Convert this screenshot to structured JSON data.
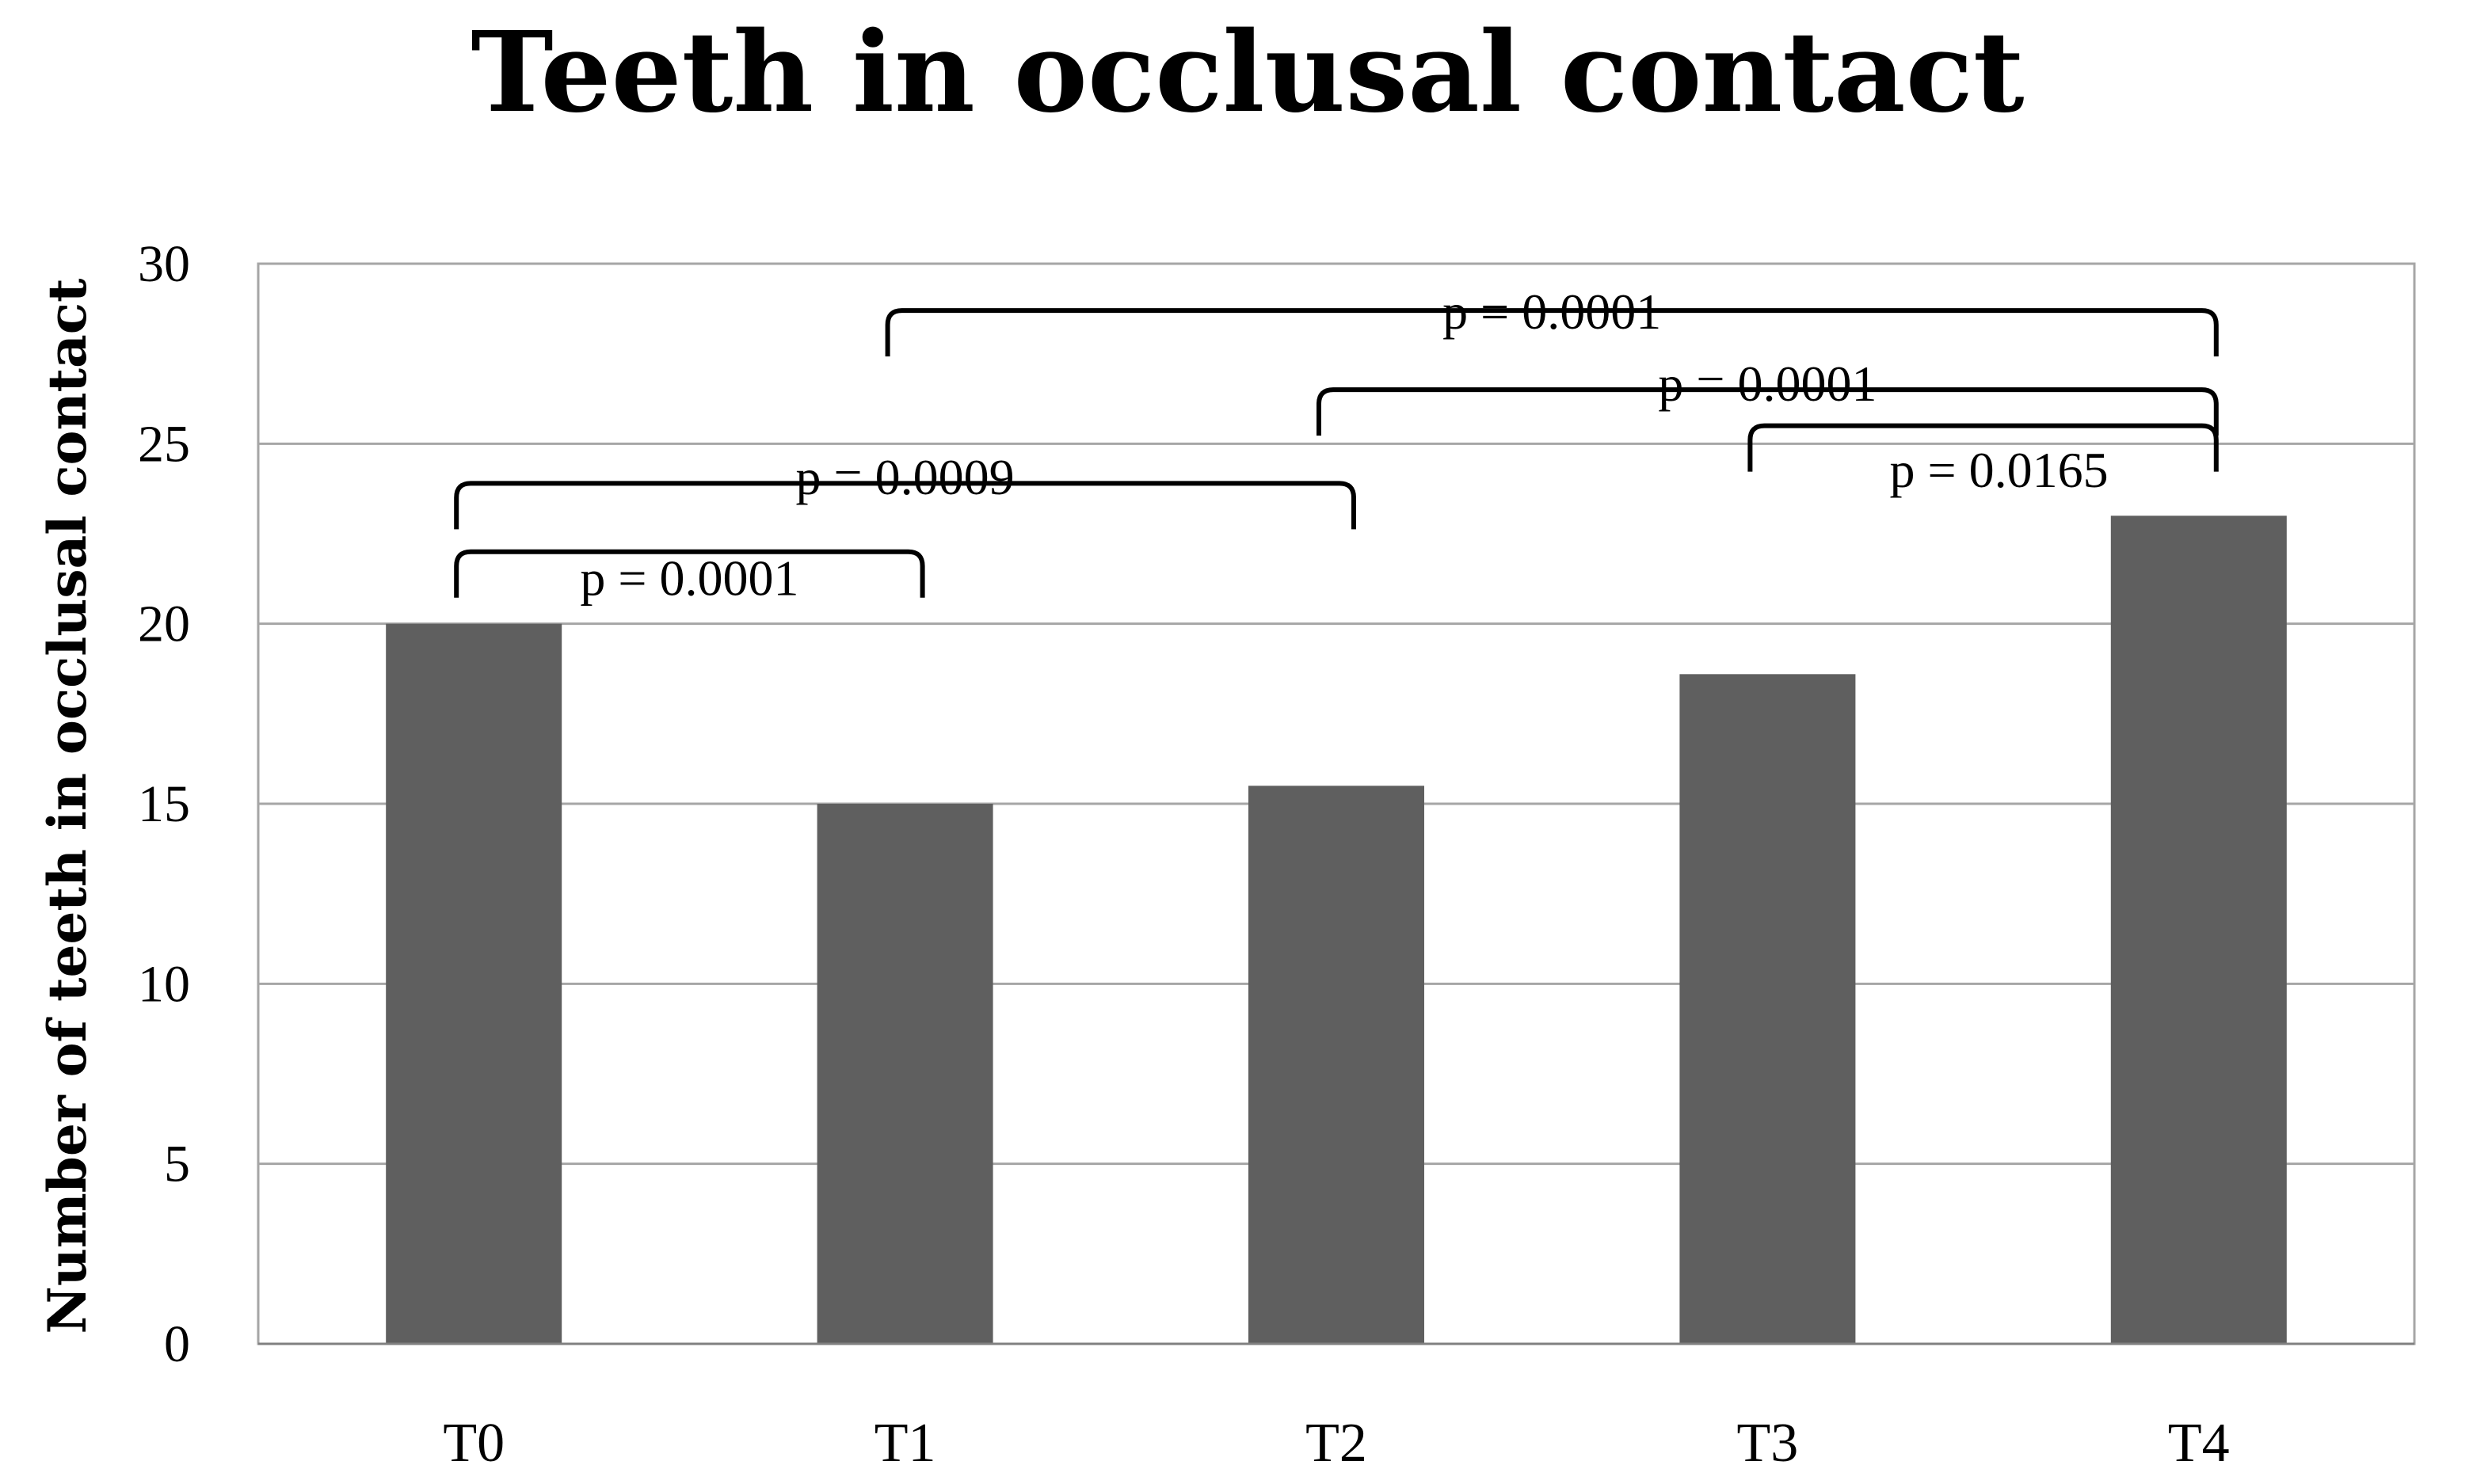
{
  "chart_data": {
    "type": "bar",
    "title": "Teeth in occlusal contact",
    "xlabel": "",
    "ylabel": "Number of teeth in occlusal contact",
    "categories": [
      "T0",
      "T1",
      "T2",
      "T3",
      "T4"
    ],
    "values": [
      20,
      15,
      15.5,
      18.6,
      23
    ],
    "ylim": [
      0,
      30
    ],
    "yticks": [
      0,
      5,
      10,
      15,
      20,
      25,
      30
    ],
    "grid": true,
    "legend": "none",
    "bar_color": "#5f5f5f",
    "annotations": [
      {
        "from": "T0",
        "to": "T1",
        "text": "p = 0.0001",
        "level": 22,
        "label_y": 20.8
      },
      {
        "from": "T0",
        "to": "T2",
        "text": "p = 0.0009",
        "level": 23.9,
        "label_y": 23.6
      },
      {
        "from": "T3",
        "to": "T4",
        "text": "p = 0.0165",
        "level": 25.5,
        "label_y": 23.8
      },
      {
        "from": "T2",
        "to": "T4",
        "text": "p = 0.0001",
        "level": 26.5,
        "label_y": 26.2
      },
      {
        "from": "T1",
        "to": "T4",
        "text": "p = 0.0001",
        "level": 28.7,
        "label_y": 28.2
      }
    ]
  }
}
